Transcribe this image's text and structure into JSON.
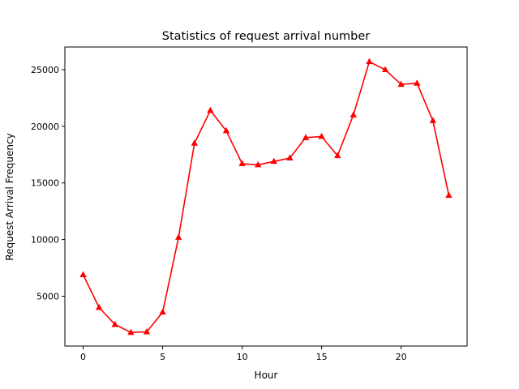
{
  "chart_data": {
    "type": "line",
    "title": "Statistics of request arrival number",
    "xlabel": "Hour",
    "ylabel": "Request Arrival Frequency",
    "xlim": [
      -1.15,
      24.15
    ],
    "ylim": [
      600,
      27000
    ],
    "x_ticks": [
      0,
      5,
      10,
      15,
      20
    ],
    "y_ticks": [
      5000,
      10000,
      15000,
      20000,
      25000
    ],
    "grid": false,
    "legend": "none",
    "series": [
      {
        "color": "#ff0000",
        "marker": "triangle-up",
        "x": [
          0,
          1,
          2,
          3,
          4,
          5,
          6,
          7,
          8,
          9,
          10,
          11,
          12,
          13,
          14,
          15,
          16,
          17,
          18,
          19,
          20,
          21,
          22,
          23
        ],
        "values": [
          6900,
          4000,
          2500,
          1800,
          1850,
          3600,
          10200,
          18500,
          21400,
          19600,
          16700,
          16600,
          16900,
          17200,
          19000,
          19100,
          17400,
          21000,
          25700,
          25000,
          23700,
          23800,
          20500,
          13900
        ]
      }
    ]
  }
}
